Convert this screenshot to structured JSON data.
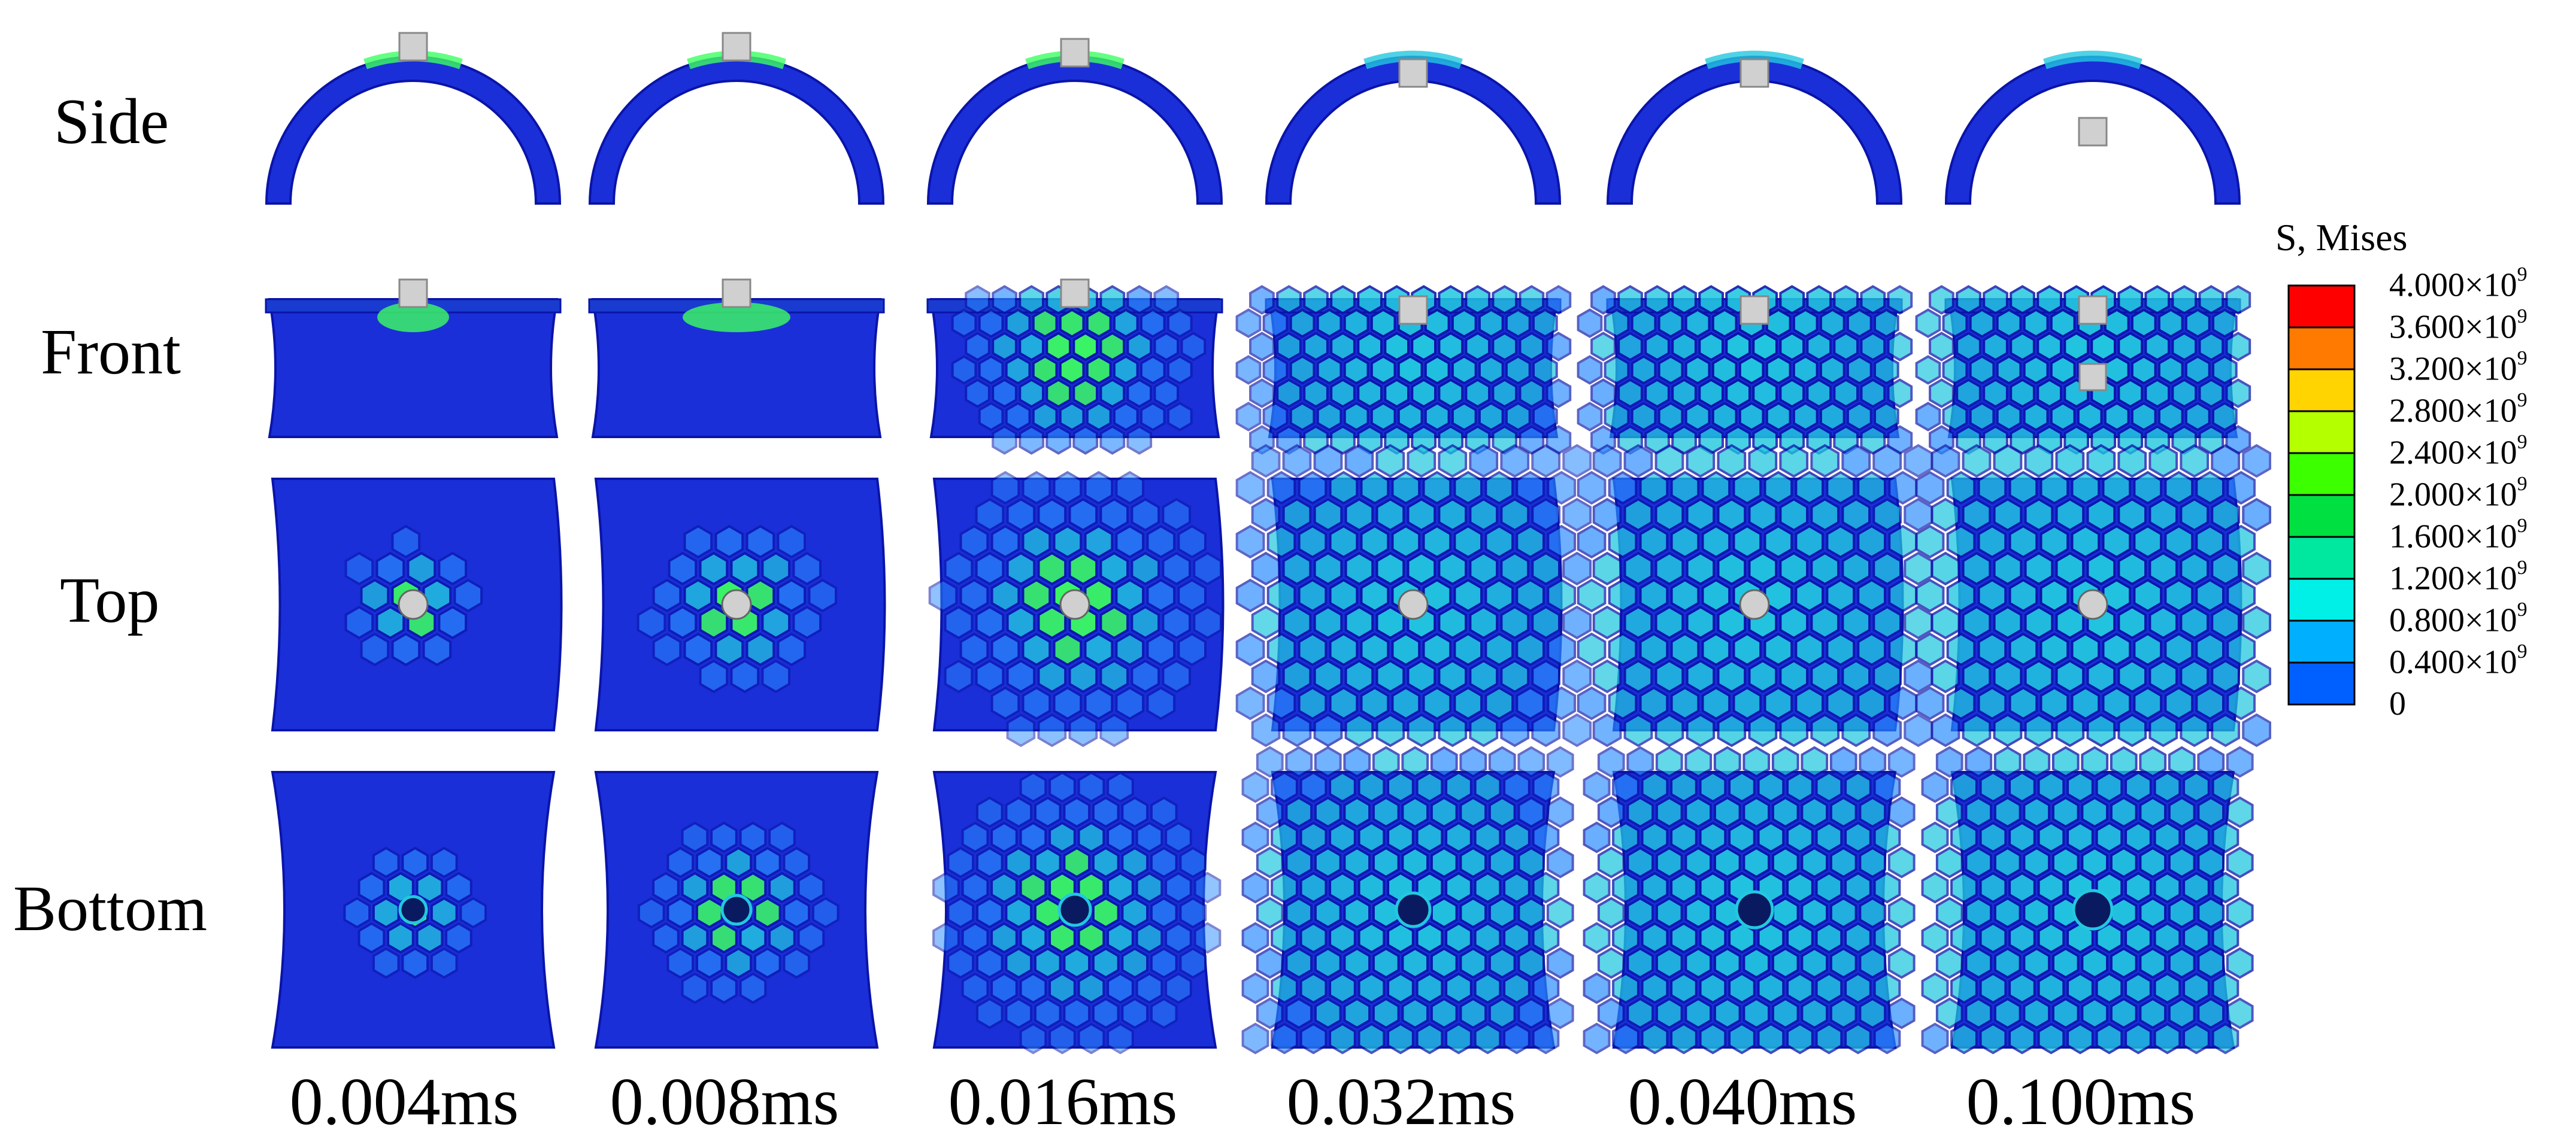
{
  "rows": [
    "Side",
    "Front",
    "Top",
    "Bottom"
  ],
  "times": [
    "0.004ms",
    "0.008ms",
    "0.016ms",
    "0.032ms",
    "0.040ms",
    "0.100ms"
  ],
  "legend": {
    "title": "S, Mises",
    "ticks": [
      {
        "mantissa": "4.000",
        "exp": "9"
      },
      {
        "mantissa": "3.600",
        "exp": "9"
      },
      {
        "mantissa": "3.200",
        "exp": "9"
      },
      {
        "mantissa": "2.800",
        "exp": "9"
      },
      {
        "mantissa": "2.400",
        "exp": "9"
      },
      {
        "mantissa": "2.000",
        "exp": "9"
      },
      {
        "mantissa": "1.600",
        "exp": "9"
      },
      {
        "mantissa": "1.200",
        "exp": "9"
      },
      {
        "mantissa": "0.800",
        "exp": "9"
      },
      {
        "mantissa": "0.400",
        "exp": "9"
      },
      {
        "mantissa": "0",
        "exp": ""
      }
    ],
    "colors": [
      "#ff0000",
      "#ff7a00",
      "#ffd400",
      "#b4ff00",
      "#3cff00",
      "#00e040",
      "#00e8a0",
      "#00f0e8",
      "#00b0ff",
      "#0060ff",
      "#0000f0"
    ]
  },
  "palette": {
    "base": "#1a2fd8",
    "dark": "#0a14a8",
    "cell": "#2a8cff",
    "cell_hot": "#3cff60",
    "impactor": "#d0d0d0"
  }
}
